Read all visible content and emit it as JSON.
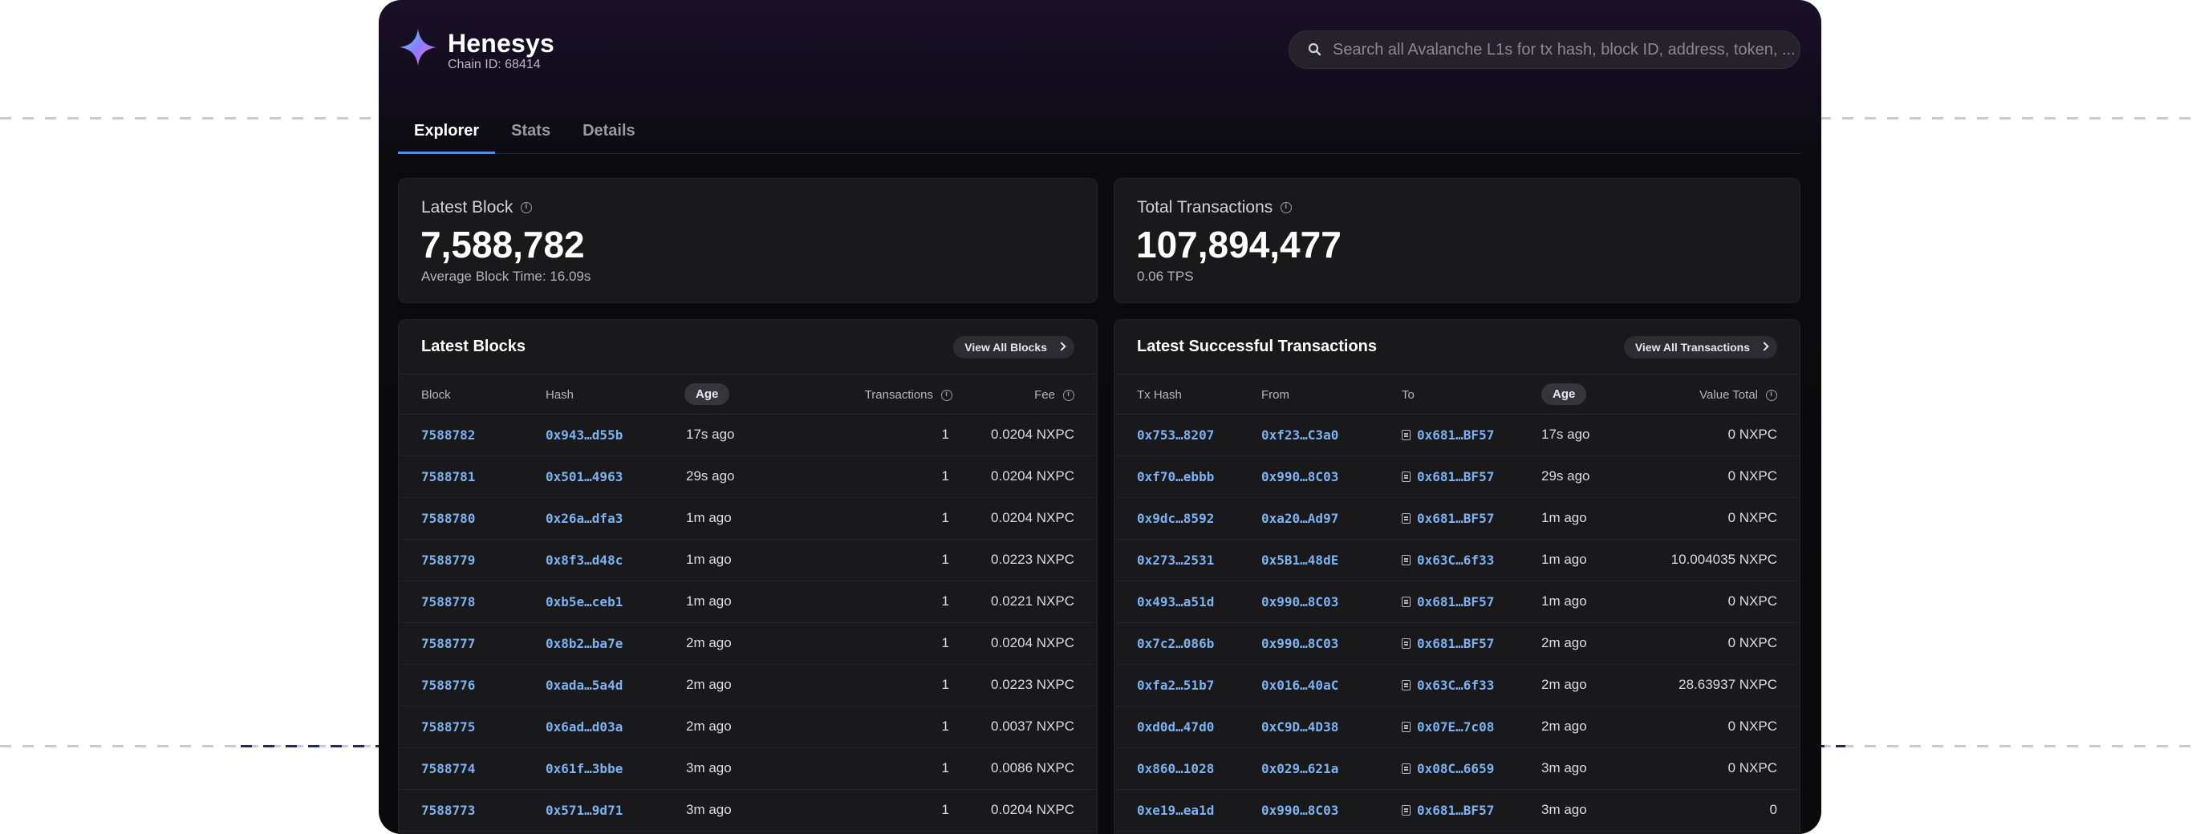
{
  "app": {
    "name": "Henesys",
    "chain_id": "Chain ID: 68414",
    "search_placeholder": "Search all Avalanche L1s for tx hash, block ID, address, token, ..."
  },
  "tabs": [
    {
      "label": "Explorer",
      "active": true
    },
    {
      "label": "Stats",
      "active": false
    },
    {
      "label": "Details",
      "active": false
    }
  ],
  "stats": {
    "latest_block": {
      "title": "Latest Block",
      "value": "7,588,782",
      "sub": "Average Block Time: 16.09s"
    },
    "total_tx": {
      "title": "Total Transactions",
      "value": "107,894,477",
      "sub": "0.06 TPS"
    }
  },
  "latest_blocks": {
    "title": "Latest Blocks",
    "view_all": "View All Blocks",
    "columns": {
      "block": "Block",
      "hash": "Hash",
      "age": "Age",
      "transactions": "Transactions",
      "fee": "Fee"
    },
    "rows": [
      {
        "block": "7588782",
        "hash": "0x943…d55b",
        "age": "17s ago",
        "tx": "1",
        "fee": "0.0204 NXPC"
      },
      {
        "block": "7588781",
        "hash": "0x501…4963",
        "age": "29s ago",
        "tx": "1",
        "fee": "0.0204 NXPC"
      },
      {
        "block": "7588780",
        "hash": "0x26a…dfa3",
        "age": "1m ago",
        "tx": "1",
        "fee": "0.0204 NXPC"
      },
      {
        "block": "7588779",
        "hash": "0x8f3…d48c",
        "age": "1m ago",
        "tx": "1",
        "fee": "0.0223 NXPC"
      },
      {
        "block": "7588778",
        "hash": "0xb5e…ceb1",
        "age": "1m ago",
        "tx": "1",
        "fee": "0.0221 NXPC"
      },
      {
        "block": "7588777",
        "hash": "0x8b2…ba7e",
        "age": "2m ago",
        "tx": "1",
        "fee": "0.0204 NXPC"
      },
      {
        "block": "7588776",
        "hash": "0xada…5a4d",
        "age": "2m ago",
        "tx": "1",
        "fee": "0.0223 NXPC"
      },
      {
        "block": "7588775",
        "hash": "0x6ad…d03a",
        "age": "2m ago",
        "tx": "1",
        "fee": "0.0037 NXPC"
      },
      {
        "block": "7588774",
        "hash": "0x61f…3bbe",
        "age": "3m ago",
        "tx": "1",
        "fee": "0.0086 NXPC"
      },
      {
        "block": "7588773",
        "hash": "0x571…9d71",
        "age": "3m ago",
        "tx": "1",
        "fee": "0.0204 NXPC"
      }
    ]
  },
  "latest_tx": {
    "title": "Latest Successful Transactions",
    "view_all": "View All Transactions",
    "columns": {
      "hash": "Tx Hash",
      "from": "From",
      "to": "To",
      "age": "Age",
      "value": "Value Total"
    },
    "rows": [
      {
        "hash": "0x753…8207",
        "from": "0xf23…C3a0",
        "to": "0x681…BF57",
        "age": "17s ago",
        "value": "0 NXPC"
      },
      {
        "hash": "0xf70…ebbb",
        "from": "0x990…8C03",
        "to": "0x681…BF57",
        "age": "29s ago",
        "value": "0 NXPC"
      },
      {
        "hash": "0x9dc…8592",
        "from": "0xa20…Ad97",
        "to": "0x681…BF57",
        "age": "1m ago",
        "value": "0 NXPC"
      },
      {
        "hash": "0x273…2531",
        "from": "0x5B1…48dE",
        "to": "0x63C…6f33",
        "age": "1m ago",
        "value": "10.004035 NXPC"
      },
      {
        "hash": "0x493…a51d",
        "from": "0x990…8C03",
        "to": "0x681…BF57",
        "age": "1m ago",
        "value": "0 NXPC"
      },
      {
        "hash": "0x7c2…086b",
        "from": "0x990…8C03",
        "to": "0x681…BF57",
        "age": "2m ago",
        "value": "0 NXPC"
      },
      {
        "hash": "0xfa2…51b7",
        "from": "0x016…40aC",
        "to": "0x63C…6f33",
        "age": "2m ago",
        "value": "28.63937 NXPC"
      },
      {
        "hash": "0xd0d…47d0",
        "from": "0xC9D…4D38",
        "to": "0x07E…7c08",
        "age": "2m ago",
        "value": "0 NXPC"
      },
      {
        "hash": "0x860…1028",
        "from": "0x029…621a",
        "to": "0x08C…6659",
        "age": "3m ago",
        "value": "0 NXPC"
      },
      {
        "hash": "0xe19…ea1d",
        "from": "0x990…8C03",
        "to": "0x681…BF57",
        "age": "3m ago",
        "value": "0"
      }
    ]
  },
  "colors": {
    "accent": "#4e8ef5",
    "link": "#7db2f0",
    "chat": "#e5484d"
  },
  "icons": {
    "logo": "star-logo-icon",
    "search": "search-icon",
    "info": "info-icon",
    "chevron": "chevron-right-icon",
    "doc": "contract-icon",
    "chat": "chat-icon"
  }
}
